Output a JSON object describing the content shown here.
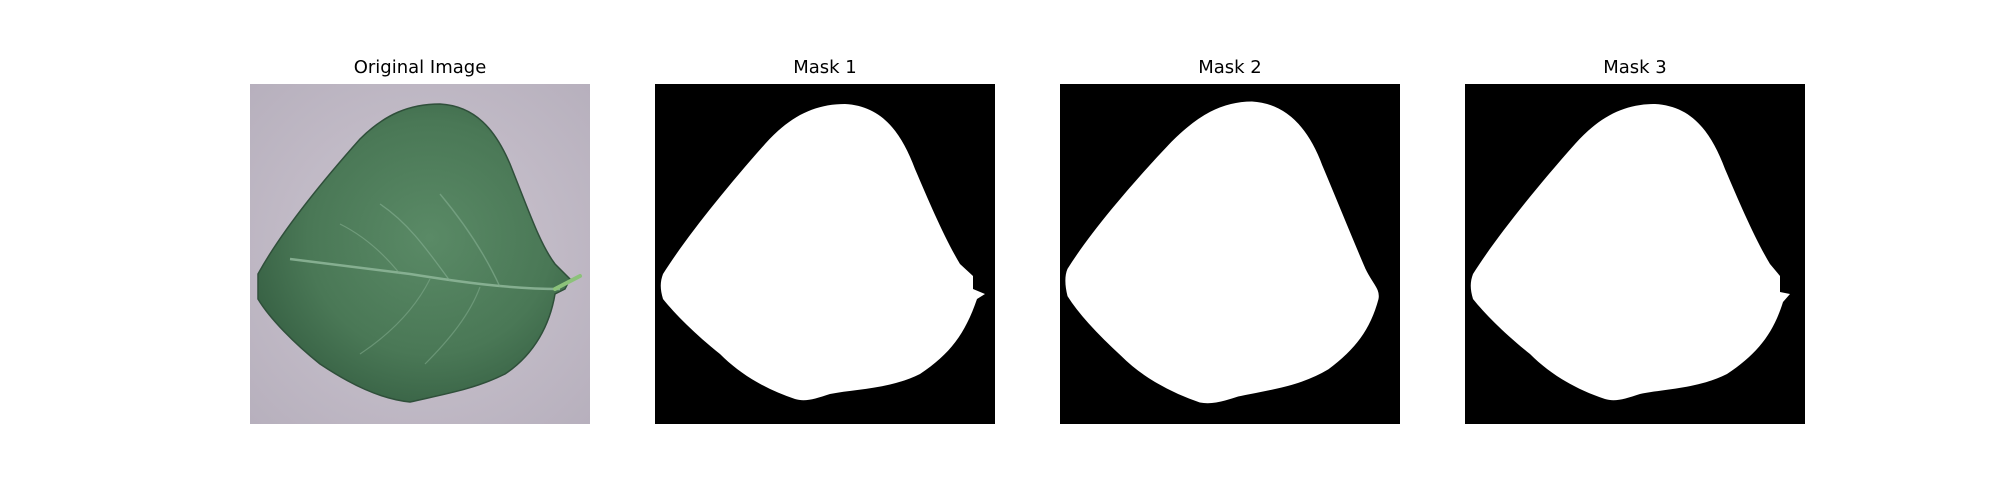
{
  "figure": {
    "panels": [
      {
        "title": "Original Image",
        "kind": "photo",
        "content": "leaf"
      },
      {
        "title": "Mask 1",
        "kind": "mask",
        "background": "#000000",
        "foreground": "#ffffff"
      },
      {
        "title": "Mask 2",
        "kind": "mask",
        "background": "#000000",
        "foreground": "#ffffff"
      },
      {
        "title": "Mask 3",
        "kind": "mask",
        "background": "#000000",
        "foreground": "#ffffff"
      }
    ],
    "colors": {
      "photo_background": "#c3bcc8",
      "leaf_dark": "#3b6a4a",
      "leaf_mid": "#4f7d5b",
      "leaf_vein": "#8fb79a",
      "petiole": "#8cc27a"
    }
  }
}
